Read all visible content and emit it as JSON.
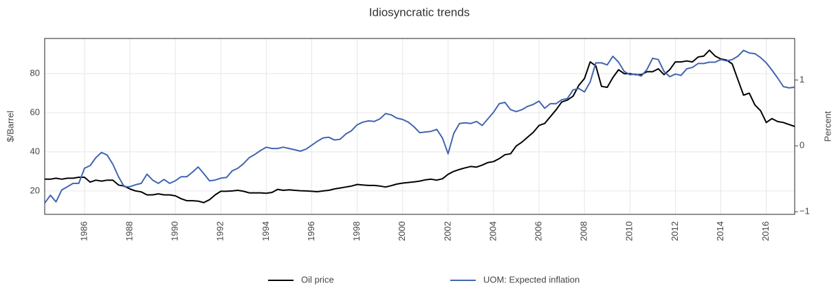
{
  "chart_data": {
    "type": "line",
    "title": "Idiosyncratic trends",
    "y_label": "$/Barrel",
    "y2_label": "Percent",
    "x": [
      1984.25,
      1984.5,
      1984.75,
      1985,
      1985.25,
      1985.5,
      1985.75,
      1986,
      1986.25,
      1986.5,
      1986.75,
      1987,
      1987.25,
      1987.5,
      1987.75,
      1988,
      1988.25,
      1988.5,
      1988.75,
      1989,
      1989.25,
      1989.5,
      1989.75,
      1990,
      1990.25,
      1990.5,
      1990.75,
      1991,
      1991.25,
      1991.5,
      1991.75,
      1992,
      1992.25,
      1992.5,
      1992.75,
      1993,
      1993.25,
      1993.5,
      1993.75,
      1994,
      1994.25,
      1994.5,
      1994.75,
      1995,
      1995.25,
      1995.5,
      1995.75,
      1996,
      1996.25,
      1996.5,
      1996.75,
      1997,
      1997.25,
      1997.5,
      1997.75,
      1998,
      1998.25,
      1998.5,
      1998.75,
      1999,
      1999.25,
      1999.5,
      1999.75,
      2000,
      2000.25,
      2000.5,
      2000.75,
      2001,
      2001.25,
      2001.5,
      2001.75,
      2002,
      2002.25,
      2002.5,
      2002.75,
      2003,
      2003.25,
      2003.5,
      2003.75,
      2004,
      2004.25,
      2004.5,
      2004.75,
      2005,
      2005.25,
      2005.5,
      2005.75,
      2006,
      2006.25,
      2006.5,
      2006.75,
      2007,
      2007.25,
      2007.5,
      2007.75,
      2008,
      2008.25,
      2008.5,
      2008.75,
      2009,
      2009.25,
      2009.5,
      2009.75,
      2010,
      2010.25,
      2010.5,
      2010.75,
      2011,
      2011.25,
      2011.5,
      2011.75,
      2012,
      2012.25,
      2012.5,
      2012.75,
      2013,
      2013.25,
      2013.5,
      2013.75,
      2014,
      2014.25,
      2014.5,
      2014.75,
      2015,
      2015.25,
      2015.5,
      2015.75,
      2016,
      2016.25,
      2016.5,
      2016.75,
      2017,
      2017.25
    ],
    "series": [
      {
        "name": "Oil price",
        "color": "#000000",
        "axis": "y",
        "values": [
          26,
          26,
          26.5,
          26,
          26.5,
          26.5,
          27,
          27,
          24.5,
          25.5,
          25,
          25.5,
          25.5,
          23,
          22.5,
          21,
          20,
          19.5,
          18,
          18,
          18.5,
          18,
          18,
          17.5,
          16,
          15,
          15,
          14.8,
          14,
          15.5,
          18,
          19.8,
          19.8,
          20,
          20.3,
          19.8,
          19,
          19,
          19,
          18.8,
          19.2,
          20.8,
          20.3,
          20.6,
          20.3,
          20.1,
          20,
          19.8,
          19.6,
          20,
          20.3,
          21,
          21.5,
          22,
          22.5,
          23.3,
          23,
          22.8,
          22.8,
          22.5,
          22,
          22.7,
          23.5,
          24,
          24.3,
          24.6,
          25,
          25.7,
          26,
          25.5,
          26.2,
          28.5,
          30,
          31,
          31.8,
          32.5,
          32.2,
          33.2,
          34.5,
          35,
          36.5,
          38.5,
          39,
          43,
          45,
          47.5,
          50,
          53.5,
          54.5,
          58,
          61.5,
          65.5,
          66.5,
          68.5,
          74,
          77.5,
          86,
          84,
          73.5,
          73,
          78,
          82,
          80,
          80,
          79.5,
          79.5,
          81,
          81,
          82.5,
          79.5,
          82,
          86,
          86,
          86.5,
          86,
          88.5,
          89,
          92,
          89,
          87.5,
          87,
          85,
          77,
          69,
          70,
          64,
          61,
          55,
          57,
          55.5,
          55,
          54,
          53
        ]
      },
      {
        "name": "UOM: Expected inflation",
        "color": "#4065b0",
        "axis": "y2",
        "values": [
          -0.87,
          -0.75,
          -0.85,
          -0.67,
          -0.62,
          -0.57,
          -0.57,
          -0.34,
          -0.3,
          -0.18,
          -0.1,
          -0.14,
          -0.28,
          -0.47,
          -0.62,
          -0.62,
          -0.59,
          -0.57,
          -0.43,
          -0.52,
          -0.57,
          -0.51,
          -0.57,
          -0.53,
          -0.47,
          -0.47,
          -0.4,
          -0.32,
          -0.42,
          -0.53,
          -0.52,
          -0.49,
          -0.48,
          -0.38,
          -0.34,
          -0.27,
          -0.18,
          -0.13,
          -0.07,
          -0.02,
          -0.04,
          -0.04,
          -0.02,
          -0.04,
          -0.06,
          -0.08,
          -0.05,
          0.01,
          0.07,
          0.12,
          0.13,
          0.09,
          0.1,
          0.18,
          0.23,
          0.32,
          0.36,
          0.38,
          0.37,
          0.41,
          0.49,
          0.47,
          0.42,
          0.4,
          0.36,
          0.29,
          0.2,
          0.21,
          0.22,
          0.25,
          0.12,
          -0.12,
          0.19,
          0.34,
          0.35,
          0.34,
          0.37,
          0.31,
          0.41,
          0.51,
          0.64,
          0.66,
          0.55,
          0.52,
          0.55,
          0.6,
          0.63,
          0.68,
          0.57,
          0.64,
          0.64,
          0.7,
          0.72,
          0.85,
          0.87,
          0.82,
          0.97,
          1.26,
          1.26,
          1.23,
          1.36,
          1.27,
          1.13,
          1.08,
          1.09,
          1.06,
          1.16,
          1.33,
          1.31,
          1.13,
          1.05,
          1.09,
          1.07,
          1.17,
          1.19,
          1.25,
          1.25,
          1.27,
          1.27,
          1.31,
          1.29,
          1.31,
          1.36,
          1.45,
          1.41,
          1.4,
          1.34,
          1.26,
          1.15,
          1.03,
          0.9,
          0.88,
          0.89
        ]
      }
    ],
    "xlim": [
      1984.25,
      2017.25
    ],
    "xticks": [
      1986,
      1988,
      1990,
      1992,
      1994,
      1996,
      1998,
      2000,
      2002,
      2004,
      2006,
      2008,
      2010,
      2012,
      2014,
      2016
    ],
    "ylim": [
      8,
      98
    ],
    "yticks": [
      20,
      40,
      60,
      80
    ],
    "y2lim": [
      -1.04,
      1.63
    ],
    "y2ticks": [
      {
        "value": -1,
        "label": "−1"
      },
      0,
      1
    ],
    "grid": true,
    "legend": "bottom"
  }
}
